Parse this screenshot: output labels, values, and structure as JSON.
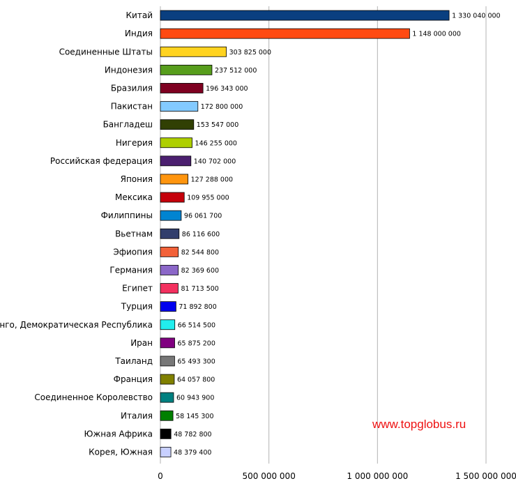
{
  "chart_data": {
    "type": "bar",
    "orientation": "horizontal",
    "categories": [
      "Китай",
      "Индия",
      "Соединенные Штаты",
      "Индонезия",
      "Бразилия",
      "Пакистан",
      "Бангладеш",
      "Нигерия",
      "Российская федерация",
      "Япония",
      "Мексика",
      "Филиппины",
      "Вьетнам",
      "Эфиопия",
      "Германия",
      "Египет",
      "Турция",
      "Конго, Демократическая Республика",
      "Иран",
      "Таиланд",
      "Франция",
      "Соединенное Королевство",
      "Италия",
      "Южная Африка",
      "Корея, Южная"
    ],
    "values": [
      1330040000,
      1148000000,
      303825000,
      237512000,
      196343000,
      172800000,
      153547000,
      146255000,
      140702000,
      127288000,
      109955000,
      96061700,
      86116600,
      82544800,
      82369600,
      81713500,
      71892800,
      66514500,
      65875200,
      65493300,
      64057800,
      60943900,
      58145300,
      48782800,
      48379400
    ],
    "value_labels": [
      "1 330 040 000",
      "1 148 000 000",
      "303 825 000",
      "237 512 000",
      "196 343 000",
      "172 800 000",
      "153 547 000",
      "146 255 000",
      "140 702 000",
      "127 288 000",
      "109 955 000",
      "96 061 700",
      "86 116 600",
      "82 544 800",
      "82 369 600",
      "81 713 500",
      "71 892 800",
      "66 514 500",
      "65 875 200",
      "65 493 300",
      "64 057 800",
      "60 943 900",
      "58 145 300",
      "48 782 800",
      "48 379 400"
    ],
    "colors": [
      "#0a3f80",
      "#ff4a12",
      "#ffd320",
      "#579d1c",
      "#7e0021",
      "#83caff",
      "#314004",
      "#aecf00",
      "#4b1f6f",
      "#ff950e",
      "#c5000b",
      "#0084d1",
      "#313e6c",
      "#f26139",
      "#8b67c8",
      "#f3315f",
      "#0000ee",
      "#22eeee",
      "#800080",
      "#777777",
      "#808000",
      "#008080",
      "#008000",
      "#000000",
      "#c8d0ff"
    ],
    "xlim": [
      0,
      1500000000
    ],
    "x_ticks": [
      0,
      500000000,
      1000000000,
      1500000000
    ],
    "x_tick_labels": [
      "0",
      "500 000 000",
      "1 000 000 000",
      "1 500 000 000"
    ],
    "grid": "vertical",
    "title": "",
    "xlabel": "",
    "ylabel": ""
  },
  "watermark": "www.topglobus.ru"
}
